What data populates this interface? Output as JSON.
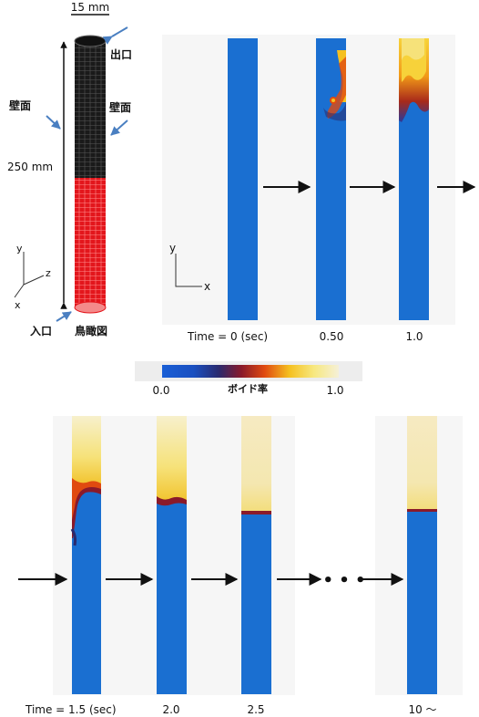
{
  "pipe_view": {
    "diameter_label": "15 mm",
    "height_label": "250 mm",
    "outlet_label": "出口",
    "inlet_label": "入口",
    "wall_label_left": "壁面",
    "wall_label_right": "壁面",
    "caption": "鳥瞰図",
    "axis_x": "x",
    "axis_y": "y",
    "axis_z": "z"
  },
  "panel_top": {
    "axis_x": "x",
    "axis_y": "y",
    "time_labels": [
      "Time = 0 (sec)",
      "0.50",
      "1.0"
    ]
  },
  "colorbar": {
    "min_label": "0.0",
    "max_label": "1.0",
    "title": "ボイド率",
    "colors": [
      "#1a5fd6",
      "#2a2a6e",
      "#8a1a2a",
      "#e04a10",
      "#f5c020",
      "#f7e880",
      "#f5f0d8"
    ]
  },
  "panel_bottom": {
    "time_labels": [
      "Time = 1.5 (sec)",
      "2.0",
      "2.5",
      "10 ～"
    ],
    "ellipsis": "• • •"
  },
  "colors": {
    "liquid": "#1a6fd1",
    "gas": "#f6ecbc",
    "pipe_upper": "#1a1a1a",
    "pipe_lower": "#e3161c",
    "arrow_blue": "#4a7fc1"
  }
}
